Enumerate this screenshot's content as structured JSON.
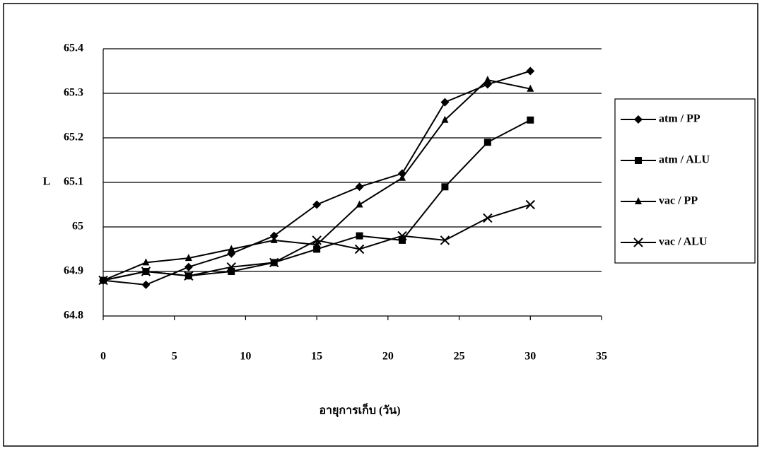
{
  "chart_data": {
    "type": "line",
    "x_label": "อายุการเก็บ  (วัน)",
    "y_label": "L",
    "x": [
      0,
      3,
      6,
      9,
      12,
      15,
      18,
      21,
      24,
      27,
      30
    ],
    "series": [
      {
        "name": "atm / PP",
        "color": "#000000",
        "marker": "diamond",
        "values": [
          64.88,
          64.87,
          64.91,
          64.94,
          64.98,
          65.05,
          65.09,
          65.12,
          65.28,
          65.32,
          65.35
        ]
      },
      {
        "name": "atm / ALU",
        "color": "#000000",
        "marker": "square",
        "values": [
          64.88,
          64.9,
          64.89,
          64.9,
          64.92,
          64.95,
          64.98,
          64.97,
          65.09,
          65.19,
          65.24
        ]
      },
      {
        "name": "vac / PP",
        "color": "#000000",
        "marker": "triangle",
        "values": [
          64.88,
          64.92,
          64.93,
          64.95,
          64.97,
          64.96,
          65.05,
          65.11,
          65.24,
          65.33,
          65.31
        ]
      },
      {
        "name": "vac / ALU",
        "color": "#000000",
        "marker": "cross",
        "values": [
          64.88,
          64.9,
          64.89,
          64.91,
          64.92,
          64.97,
          64.95,
          64.98,
          64.97,
          65.02,
          65.05
        ]
      }
    ],
    "xlim": [
      0,
      35
    ],
    "xticks": [
      0,
      5,
      10,
      15,
      20,
      25,
      30,
      35
    ],
    "ylim": [
      64.8,
      65.4
    ],
    "yticks": [
      64.8,
      64.9,
      65,
      65.1,
      65.2,
      65.3,
      65.4
    ],
    "grid": true,
    "legend": "right"
  }
}
